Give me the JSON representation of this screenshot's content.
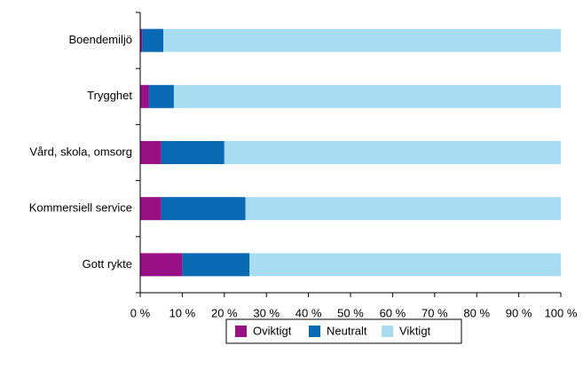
{
  "chart_data": {
    "type": "stacked-barh",
    "categories": [
      "Boendemiljö",
      "Trygghet",
      "Vård, skola, omsorg",
      "Kommersiell service",
      "Gott rykte"
    ],
    "series": [
      {
        "name": "Oviktigt",
        "color": "#990f84",
        "values": [
          0.5,
          2,
          5,
          5,
          10
        ]
      },
      {
        "name": "Neutralt",
        "color": "#0a69b3",
        "values": [
          5,
          6,
          15,
          20,
          16
        ]
      },
      {
        "name": "Viktigt",
        "color": "#a7dcf1",
        "values": [
          94.5,
          92,
          80,
          75,
          74
        ]
      }
    ],
    "xlim": [
      0,
      100
    ],
    "xticks": [
      {
        "value": 0,
        "label": "0 %"
      },
      {
        "value": 10,
        "label": "10 %"
      },
      {
        "value": 20,
        "label": "20 %"
      },
      {
        "value": 30,
        "label": "30 %"
      },
      {
        "value": 40,
        "label": "40 %"
      },
      {
        "value": 50,
        "label": "50 %"
      },
      {
        "value": 60,
        "label": "60 %"
      },
      {
        "value": 70,
        "label": "70 %"
      },
      {
        "value": 80,
        "label": "80 %"
      },
      {
        "value": 90,
        "label": "90 %"
      },
      {
        "value": 100,
        "label": "100 %"
      }
    ],
    "legend": "bottom"
  }
}
